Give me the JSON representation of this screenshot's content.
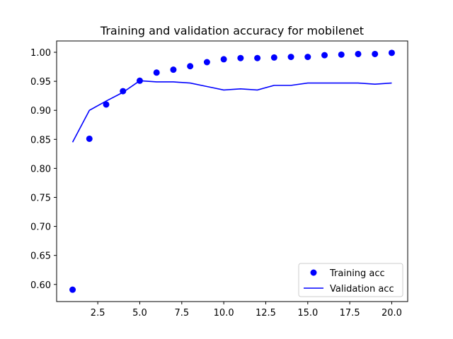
{
  "chart_data": {
    "type": "line",
    "title": "Training and validation accuracy for mobilenet",
    "xlabel": "",
    "ylabel": "",
    "xlim": [
      0.05,
      20.95
    ],
    "ylim": [
      0.5705,
      1.0195
    ],
    "x_ticks": [
      2.5,
      5.0,
      7.5,
      10.0,
      12.5,
      15.0,
      17.5,
      20.0
    ],
    "x_tick_labels": [
      "2.5",
      "5.0",
      "7.5",
      "10.0",
      "12.5",
      "15.0",
      "17.5",
      "20.0"
    ],
    "y_ticks": [
      0.6,
      0.65,
      0.7,
      0.75,
      0.8,
      0.85,
      0.9,
      0.95,
      1.0
    ],
    "y_tick_labels": [
      "0.60",
      "0.65",
      "0.70",
      "0.75",
      "0.80",
      "0.85",
      "0.90",
      "0.95",
      "1.00"
    ],
    "grid": false,
    "legend_position": "lower right",
    "x": [
      1,
      2,
      3,
      4,
      5,
      6,
      7,
      8,
      9,
      10,
      11,
      12,
      13,
      14,
      15,
      16,
      17,
      18,
      19,
      20
    ],
    "series": [
      {
        "name": "Training acc",
        "style": "markers",
        "color": "#0000ff",
        "values": [
          0.591,
          0.851,
          0.91,
          0.933,
          0.951,
          0.965,
          0.97,
          0.976,
          0.983,
          0.988,
          0.99,
          0.99,
          0.991,
          0.992,
          0.992,
          0.995,
          0.996,
          0.997,
          0.997,
          0.999
        ]
      },
      {
        "name": "Validation acc",
        "style": "line",
        "color": "#0000ff",
        "values": [
          0.845,
          0.9,
          0.916,
          0.931,
          0.951,
          0.949,
          0.949,
          0.947,
          0.941,
          0.935,
          0.937,
          0.935,
          0.943,
          0.943,
          0.947,
          0.947,
          0.947,
          0.947,
          0.945,
          0.947
        ]
      }
    ]
  }
}
